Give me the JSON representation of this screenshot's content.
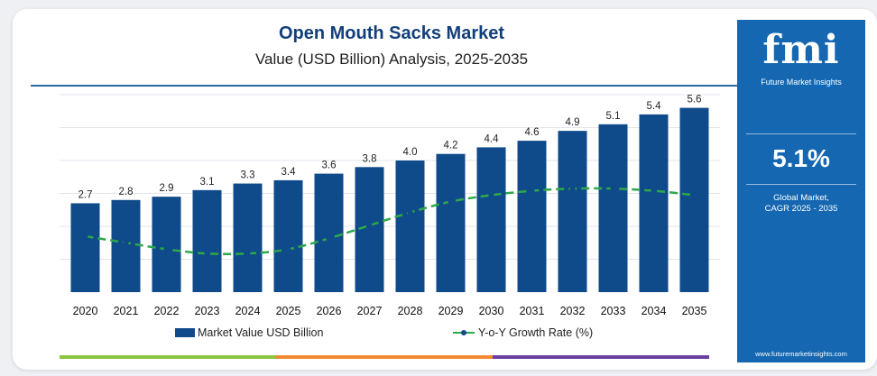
{
  "header": {
    "title": "Open Mouth Sacks Market",
    "subtitle": "Value (USD Billion) Analysis, 2025-2035"
  },
  "sidebar": {
    "logo_text": "fmi",
    "logo_subtitle": "Future Market Insights",
    "cagr_value": "5.1%",
    "cagr_label_line1": "Global Market,",
    "cagr_label_line2": "CAGR 2025 - 2035",
    "website": "www.futuremarketinsights.com"
  },
  "legend": {
    "bar_label": "Market Value USD Billion",
    "line_label": "Y-o-Y Growth Rate (%)"
  },
  "colors": {
    "bar": "#0f4a8a",
    "line": "#2ea84a",
    "title": "#123f7a",
    "sidebar": "#1467b0",
    "accent_green": "#8cc63f",
    "accent_orange": "#f28b30",
    "accent_purple": "#6b3fa0"
  },
  "chart_data": {
    "type": "bar",
    "categories": [
      "2020",
      "2021",
      "2022",
      "2023",
      "2024",
      "2025",
      "2026",
      "2027",
      "2028",
      "2029",
      "2030",
      "2031",
      "2032",
      "2033",
      "2034",
      "2035"
    ],
    "series": [
      {
        "name": "Market Value USD Billion",
        "type": "bar",
        "values": [
          2.7,
          2.8,
          2.9,
          3.1,
          3.3,
          3.4,
          3.6,
          3.8,
          4.0,
          4.2,
          4.4,
          4.6,
          4.9,
          5.1,
          5.4,
          5.6
        ],
        "labels": [
          "2.7",
          "2.8",
          "2.9",
          "3.1",
          "3.3",
          "3.4",
          "3.6",
          "3.8",
          "4.0",
          "4.2",
          "4.4",
          "4.6",
          "4.9",
          "5.1",
          "5.4",
          "5.6"
        ]
      },
      {
        "name": "Y-o-Y Growth Rate (%)",
        "type": "line",
        "values": [
          4.0,
          3.7,
          3.4,
          3.2,
          3.2,
          3.4,
          3.9,
          4.5,
          5.1,
          5.6,
          5.9,
          6.1,
          6.2,
          6.2,
          6.1,
          5.9
        ]
      }
    ],
    "title": "Open Mouth Sacks Market",
    "subtitle": "Value (USD Billion) Analysis, 2025-2035",
    "ylim": [
      0,
      6
    ],
    "legend_position": "bottom"
  }
}
